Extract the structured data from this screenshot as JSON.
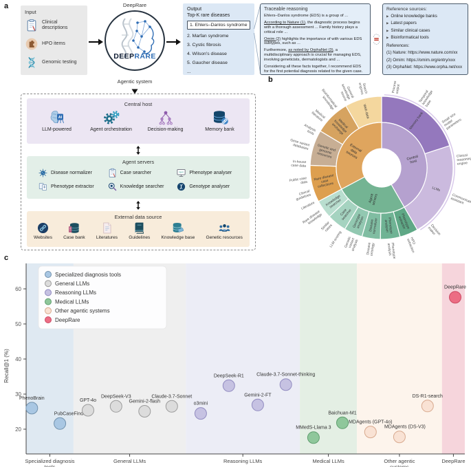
{
  "panel_a": {
    "label": "a",
    "input": {
      "title": "Input",
      "items": [
        {
          "icon": "clipboard-icon",
          "label": "Clinical descriptions"
        },
        {
          "icon": "hpo-icon",
          "label": "HPO items"
        },
        {
          "icon": "dna-icon",
          "label": "Genomic testing"
        }
      ]
    },
    "deeprare": {
      "top_label": "DeepRare",
      "logo_deep": "DEEP",
      "logo_rare": "RARE",
      "bottom_label": "Agentic system"
    },
    "output": {
      "title": "Output",
      "subtitle": "Top-K rare diseases",
      "items": [
        "1. Ehlers–Danlos syndrome",
        "2. Marfan syndrome",
        "3. Cystic fibrosis",
        "4. Wilson's disease",
        "5. Gaucher disease",
        "..."
      ],
      "highlighted_index": 0
    },
    "reasoning": {
      "title": "Traceable reasoning",
      "paragraphs": [
        [
          {
            "t": "Ehlers–Danlos syndrome (EDS) is a group of ..."
          }
        ],
        [
          {
            "t": "According to Nature (1)",
            "u": true
          },
          {
            "t": ", the diagnostic process begins with a thorough assessment ... Family history plays a critical role ..."
          }
        ],
        [
          {
            "t": "Omim (2)",
            "u": true
          },
          {
            "t": " highlights the importance of with various EDS subtypes, such as ..."
          }
        ],
        [
          {
            "t": "Furthermore, "
          },
          {
            "t": "as noted by OrphaNet (3)",
            "u": true
          },
          {
            "t": ", a multidisciplinary approach is crucial for managing EDS, involving geneticists, dermatologists and ..."
          }
        ],
        [
          {
            "t": "Considering all these facts together, I recommend EDS for the first potential diagnosis related to the given case."
          }
        ]
      ]
    },
    "references": {
      "title": "Reference sources:",
      "bullet": "▶",
      "sources": [
        "Online knowledge banks",
        "Latest papers",
        "Similar clinical cases",
        "Bioinformatical tools"
      ],
      "refs_title": "References:",
      "refs": [
        "(1) Nature: https://www.nature.com/xx",
        "(2) Omim: https://omim.org/entry/xxx",
        "(3) OrphaNet: https://www.orpha.net/xxx"
      ]
    },
    "architecture": {
      "central_host": {
        "title": "Central host",
        "items": [
          {
            "icon": "brain-ai-icon",
            "label": "LLM-powered"
          },
          {
            "icon": "gears-icon",
            "label": "Agent orchestration"
          },
          {
            "icon": "decision-tree-icon",
            "label": "Decision-making"
          },
          {
            "icon": "database-link-icon",
            "label": "Memory bank"
          }
        ]
      },
      "agent_servers": {
        "title": "Agent servers",
        "items": [
          {
            "icon": "virus-icon",
            "label": "Disease normalizer"
          },
          {
            "icon": "clipboard-icon",
            "label": "Case searcher"
          },
          {
            "icon": "monitor-icon",
            "label": "Phenotype analyser"
          },
          {
            "icon": "documents-icon",
            "label": "Phenotype extractor"
          },
          {
            "icon": "magnifier-icon",
            "label": "Knowledge searcher"
          },
          {
            "icon": "gene-circle-icon",
            "label": "Genotype analyser"
          }
        ]
      },
      "external": {
        "title": "External data source",
        "items": [
          {
            "icon": "link-circle-icon",
            "label": "Websites"
          },
          {
            "icon": "server-icon",
            "label": "Case bank"
          },
          {
            "icon": "document-icon",
            "label": "Literatures"
          },
          {
            "icon": "book-icon",
            "label": "Guidelines"
          },
          {
            "icon": "knowledge-db-icon",
            "label": "Knowledge base"
          },
          {
            "icon": "people-icon",
            "label": "Genetic resources"
          }
        ]
      }
    }
  },
  "panel_b": {
    "label": "b",
    "sunburst": {
      "ring1": [
        {
          "name": "Central host",
          "start": 0,
          "end": 150,
          "color": "#b5a1cf"
        },
        {
          "name": "Agent servers",
          "start": 150,
          "end": 242,
          "color": "#74b493"
        },
        {
          "name": "External data sources",
          "start": 242,
          "end": 360,
          "color": "#dfa55e"
        }
      ],
      "ring2": [
        {
          "name": "Memory bank",
          "start": 0,
          "end": 72,
          "color": "#9478bd"
        },
        {
          "name": "LLMs",
          "start": 72,
          "end": 150,
          "color": "#cbbade"
        },
        {
          "name": "Phenotype extractor",
          "start": 150,
          "end": 165,
          "color": "#5fa886"
        },
        {
          "name": "Phenotype analyser",
          "start": 165,
          "end": 181,
          "color": "#6fb394"
        },
        {
          "name": "Disease normalizer",
          "start": 181,
          "end": 196,
          "color": "#80bda2"
        },
        {
          "name": "Genotype analyser",
          "start": 196,
          "end": 211,
          "color": "#92c8b1"
        },
        {
          "name": "Case searcher",
          "start": 211,
          "end": 227,
          "color": "#a5d3c0"
        },
        {
          "name": "Knowledge searcher",
          "start": 227,
          "end": 242,
          "color": "#b9decf"
        },
        {
          "name": "Rare disease case collections",
          "start": 242,
          "end": 272,
          "color": "#dd9f4f"
        },
        {
          "name": "Genetic and genomic resources",
          "start": 272,
          "end": 301,
          "color": "#c7ae94"
        },
        {
          "name": "Medical knowledge exchange",
          "start": 301,
          "end": 330,
          "color": "#d6a360"
        },
        {
          "name": "Web data",
          "start": 330,
          "end": 360,
          "color": "#f4d79e"
        }
      ],
      "outer_labels": [
        {
          "text": "Process output",
          "angle": 10
        },
        {
          "text": "Temporal knowledge base",
          "angle": 33
        },
        {
          "text": "Small size model parameters",
          "angle": 56
        },
        {
          "text": "Clinical reasoning engine",
          "angle": 84
        },
        {
          "text": "Communication assistant",
          "angle": 112
        },
        {
          "text": "Decision maker",
          "angle": 140
        },
        {
          "text": "HPO extraction",
          "angle": 158
        },
        {
          "text": "Phenotype analysis",
          "angle": 173
        },
        {
          "text": "Disease ontology",
          "angle": 188
        },
        {
          "text": "Genetic variant analysis",
          "angle": 202
        },
        {
          "text": "LLM scoring",
          "angle": 213
        },
        {
          "text": "Similar cases",
          "angle": 223
        },
        {
          "text": "Rare disease knowledge",
          "angle": 234
        },
        {
          "text": "Literature",
          "angle": 243
        },
        {
          "text": "Clinical guidelines",
          "angle": 251
        },
        {
          "text": "Public case data",
          "angle": 261
        },
        {
          "text": "In-house case data",
          "angle": 273
        },
        {
          "text": "Gene variant databases",
          "angle": 286
        },
        {
          "text": "Analysis tools",
          "angle": 298
        },
        {
          "text": "Medical literature",
          "angle": 310
        },
        {
          "text": "Bioinformatical knowledge",
          "angle": 322
        },
        {
          "text": "General knowledge source",
          "angle": 335
        },
        {
          "text": "Search engines",
          "angle": 347
        }
      ]
    }
  },
  "panel_c": {
    "label": "c",
    "chart_data": {
      "type": "scatter",
      "title": "",
      "xlabel": "",
      "ylabel": "Recall@1 (%)",
      "ylim": [
        14,
        63
      ],
      "yticks": [
        20,
        30,
        40,
        50,
        60
      ],
      "grid": false,
      "legend_position": "upper left",
      "groups": [
        {
          "name": "Specialized diagnosis tools",
          "axis_label": "Specialized diagnosis\ntools",
          "band_color": "#dfe9f2",
          "dot_fill": "#a9c7e3",
          "dot_stroke": "#7191ad",
          "band_range": [
            0,
            0.108
          ],
          "points": [
            {
              "name": "PhenoBrain",
              "x": 0.013,
              "recall": 26.0
            },
            {
              "name": "PubCaseFinder",
              "x": 0.077,
              "recall": 21.6,
              "label_dx": 16
            }
          ]
        },
        {
          "name": "General LLMs",
          "axis_label": "General LLMs",
          "band_color": "#efefef",
          "dot_fill": "#dcdcdc",
          "dot_stroke": "#9b9b9b",
          "band_range": [
            0.108,
            0.364
          ],
          "points": [
            {
              "name": "GPT-4o",
              "x": 0.141,
              "recall": 25.4
            },
            {
              "name": "DeepSeek-V3",
              "x": 0.205,
              "recall": 26.5
            },
            {
              "name": "Gemini-2-flash",
              "x": 0.27,
              "recall": 25.1
            },
            {
              "name": "Claude-3.7-Sonnet",
              "x": 0.332,
              "recall": 26.5
            }
          ]
        },
        {
          "name": "Reasoning LLMs",
          "axis_label": "Reasoning LLMs",
          "band_color": "#ecedf6",
          "dot_fill": "#c6c2e2",
          "dot_stroke": "#918bc0",
          "band_range": [
            0.364,
            0.624
          ],
          "points": [
            {
              "name": "o3mini",
              "x": 0.398,
              "recall": 24.5
            },
            {
              "name": "DeepSeek-R1",
              "x": 0.462,
              "recall": 32.4
            },
            {
              "name": "Gemini-2-FT",
              "x": 0.528,
              "recall": 26.9
            },
            {
              "name": "Claude-3.7-Sonnet-thinking",
              "x": 0.592,
              "recall": 32.7
            }
          ]
        },
        {
          "name": "Medical LLMs",
          "axis_label": "Medical LLMs",
          "band_color": "#e4efe4",
          "dot_fill": "#8fc79b",
          "dot_stroke": "#5f9e6e",
          "band_range": [
            0.624,
            0.754
          ],
          "points": [
            {
              "name": "MMedS-Llama 3",
              "x": 0.655,
              "recall": 17.6
            },
            {
              "name": "Baichuan-M1",
              "x": 0.721,
              "recall": 21.8
            }
          ]
        },
        {
          "name": "Other agentic systems",
          "axis_label": "Other agentic\nsystems",
          "band_color": "#fdf4ec",
          "dot_fill": "#f9e2d4",
          "dot_stroke": "#d8a98e",
          "band_range": [
            0.754,
            0.948
          ],
          "points": [
            {
              "name": "MDAgents (GPT-4o)",
              "x": 0.785,
              "recall": 19.2
            },
            {
              "name": "MDAgents (DS-V3)",
              "x": 0.851,
              "recall": 17.8,
              "label_dx": 8
            },
            {
              "name": "DS-R1-search",
              "x": 0.915,
              "recall": 26.6
            }
          ]
        },
        {
          "name": "DeepRare",
          "axis_label": "DeepRare",
          "band_color": "#f6d5dc",
          "dot_fill": "#ec6d84",
          "dot_stroke": "#cc4a63",
          "band_range": [
            0.948,
            1
          ],
          "points": [
            {
              "name": "DeepRare",
              "x": 0.978,
              "recall": 57.6
            }
          ]
        }
      ]
    }
  }
}
